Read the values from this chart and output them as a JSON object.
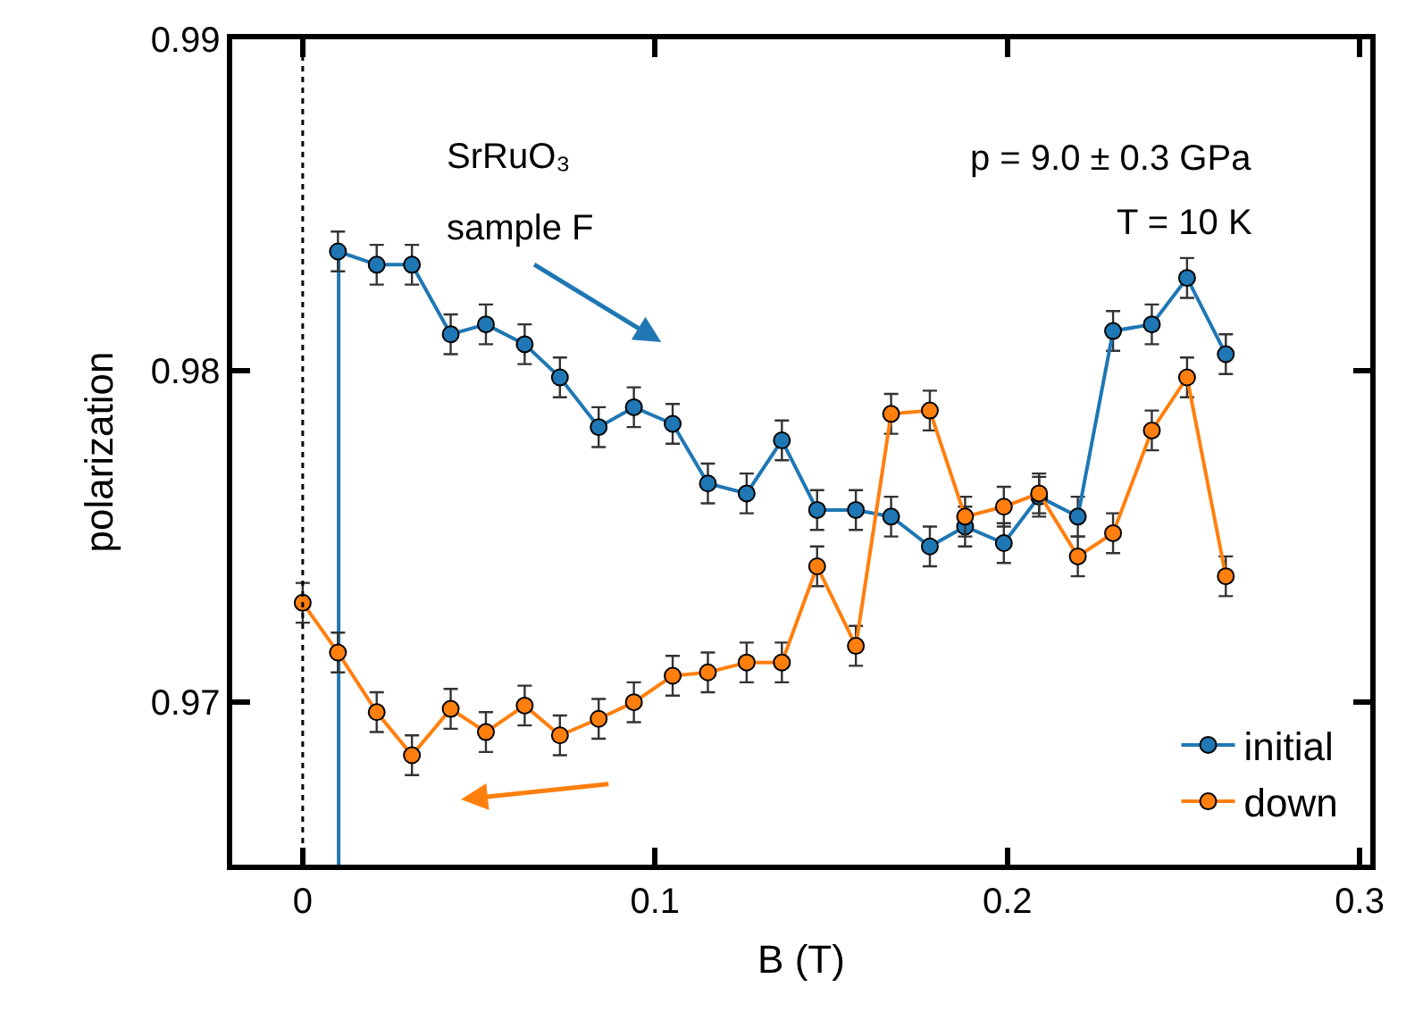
{
  "chart_data": {
    "type": "line",
    "xlabel": "B (T)",
    "ylabel": "polarization",
    "xlim": [
      -0.02,
      0.303
    ],
    "xticks": [
      0,
      0.1,
      0.2,
      0.3
    ],
    "ylim": [
      0.9651,
      0.99
    ],
    "yticks": [
      0.97,
      0.98,
      0.99
    ],
    "grid": false,
    "legend": "bottom right",
    "marker": "circle",
    "line_style": "solid",
    "ref_lines": [
      {
        "axis": "x",
        "value": 0,
        "color": "#000000",
        "line_style": "dotted"
      }
    ],
    "annotations": [
      "SrRuO₃",
      "sample F",
      "p = 9.0 ± 0.3 GPa",
      "T = 10 K"
    ],
    "series": [
      {
        "x": [
          0.0102,
          0.0102
        ],
        "values": [
          0.9651,
          0.9836
        ],
        "color": "#1f77b4",
        "marker": "none"
      },
      {
        "name": "initial",
        "color": "#1f77b4",
        "x": [
          0.01,
          0.021,
          0.031,
          0.042,
          0.052,
          0.063,
          0.073,
          0.084,
          0.094,
          0.105,
          0.115,
          0.126,
          0.136,
          0.146,
          0.157,
          0.167,
          0.178,
          0.188,
          0.199,
          0.209,
          0.22,
          0.23,
          0.241,
          0.251,
          0.262
        ],
        "values": [
          0.9836,
          0.9832,
          0.9832,
          0.9811,
          0.9814,
          0.9808,
          0.9798,
          0.9783,
          0.9789,
          0.9784,
          0.9766,
          0.9763,
          0.9779,
          0.9758,
          0.9758,
          0.9756,
          0.9747,
          0.9753,
          0.9748,
          0.9762,
          0.9756,
          0.9812,
          0.9814,
          0.9828,
          0.9805
        ],
        "errors": [
          0.0006,
          0.0006,
          0.0006,
          0.0006,
          0.0006,
          0.0006,
          0.0006,
          0.0006,
          0.0006,
          0.0006,
          0.0006,
          0.0006,
          0.0006,
          0.0006,
          0.0006,
          0.0006,
          0.0006,
          0.0006,
          0.0006,
          0.0006,
          0.0006,
          0.0006,
          0.0006,
          0.0006,
          0.0006
        ]
      },
      {
        "name": "down",
        "color": "#ff7f0e",
        "x": [
          0,
          0.01,
          0.021,
          0.031,
          0.042,
          0.052,
          0.063,
          0.073,
          0.084,
          0.094,
          0.105,
          0.115,
          0.126,
          0.136,
          0.146,
          0.157,
          0.167,
          0.178,
          0.188,
          0.199,
          0.209,
          0.22,
          0.23,
          0.241,
          0.251,
          0.262
        ],
        "values": [
          0.973,
          0.9715,
          0.9697,
          0.9684,
          0.9698,
          0.9691,
          0.9699,
          0.969,
          0.9695,
          0.97,
          0.9708,
          0.9709,
          0.9712,
          0.9712,
          0.9741,
          0.9717,
          0.9787,
          0.9788,
          0.9756,
          0.9759,
          0.9763,
          0.9744,
          0.9751,
          0.9782,
          0.9798,
          0.9738
        ],
        "errors": [
          0.0006,
          0.0006,
          0.0006,
          0.0006,
          0.0006,
          0.0006,
          0.0006,
          0.0006,
          0.0006,
          0.0006,
          0.0006,
          0.0006,
          0.0006,
          0.0006,
          0.0006,
          0.0006,
          0.0006,
          0.0006,
          0.0006,
          0.0006,
          0.0006,
          0.0006,
          0.0006,
          0.0006,
          0.0006,
          0.0006
        ]
      }
    ]
  }
}
